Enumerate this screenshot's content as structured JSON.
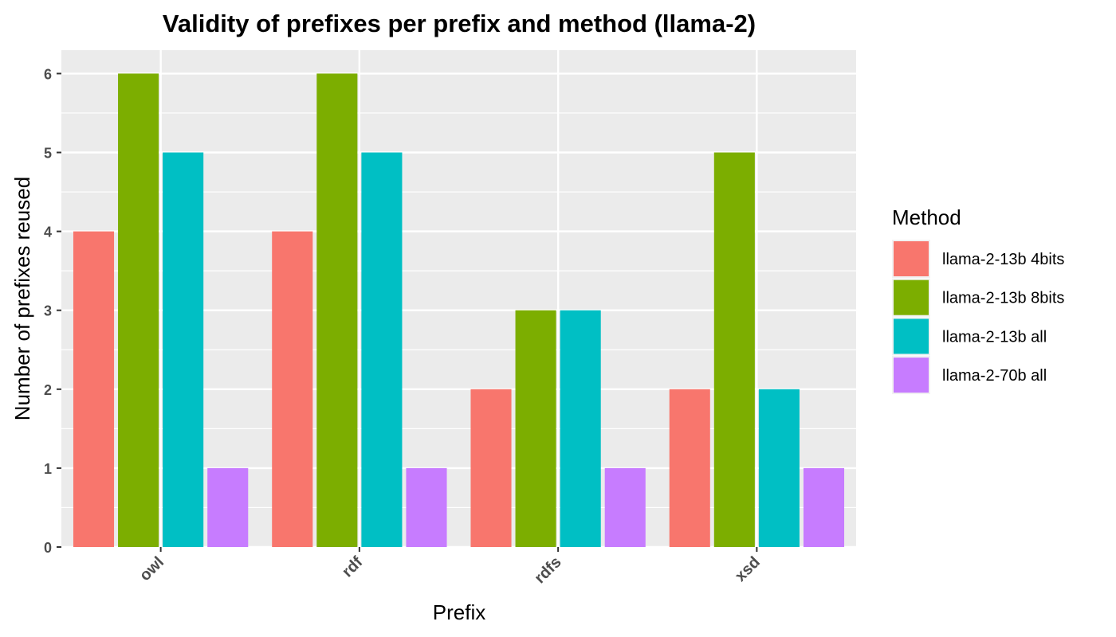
{
  "chart_data": {
    "type": "bar",
    "title": "Validity of prefixes per prefix and method (llama-2)",
    "xlabel": "Prefix",
    "ylabel": "Number of prefixes reused",
    "categories": [
      "owl",
      "rdf",
      "rdfs",
      "xsd"
    ],
    "ylim": [
      0,
      6.3
    ],
    "yticks": [
      "0",
      "1",
      "2",
      "3",
      "4",
      "5",
      "6"
    ],
    "grid": true,
    "legend": {
      "title": "Method",
      "position": "right"
    },
    "series": [
      {
        "name": "llama-2-13b 4bits",
        "color": "#F8766D",
        "values": [
          4,
          4,
          2,
          2
        ]
      },
      {
        "name": "llama-2-13b 8bits",
        "color": "#7CAE00",
        "values": [
          6,
          6,
          3,
          5
        ]
      },
      {
        "name": "llama-2-13b all",
        "color": "#00BFC4",
        "values": [
          5,
          5,
          3,
          2
        ]
      },
      {
        "name": "llama-2-70b all",
        "color": "#C77CFF",
        "values": [
          1,
          1,
          1,
          1
        ]
      }
    ]
  }
}
